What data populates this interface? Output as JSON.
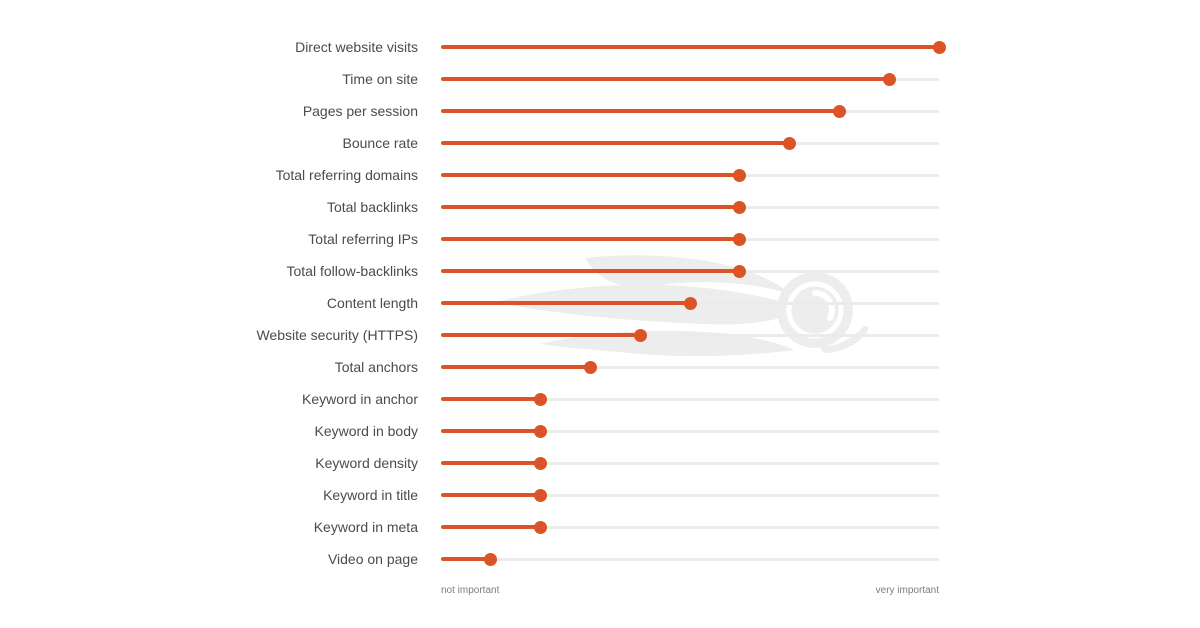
{
  "colors": {
    "background": "#ffffff",
    "line": "#db5427",
    "track": "#ebebeb",
    "label_text": "#474c52",
    "axis_text": "#7a7d80",
    "watermark": "#ededed"
  },
  "watermark": {
    "icon": "semrush-logo-watermark"
  },
  "chart_data": {
    "type": "bar",
    "style": "lollipop",
    "orientation": "horizontal",
    "title": "",
    "categories": [
      "Direct website visits",
      "Time on site",
      "Pages per session",
      "Bounce rate",
      "Total referring domains",
      "Total backlinks",
      "Total referring IPs",
      "Total follow-backlinks",
      "Content length",
      "Website security (HTTPS)",
      "Total anchors",
      "Keyword in anchor",
      "Keyword in body",
      "Keyword density",
      "Keyword in title",
      "Keyword in meta",
      "Video on page"
    ],
    "values": [
      1.0,
      0.9,
      0.8,
      0.7,
      0.6,
      0.6,
      0.6,
      0.6,
      0.5,
      0.4,
      0.3,
      0.2,
      0.2,
      0.2,
      0.2,
      0.2,
      0.1
    ],
    "xlim": [
      0,
      1
    ],
    "xlabel_left": "not important",
    "xlabel_right": "very important",
    "grid": false,
    "legend": false
  }
}
